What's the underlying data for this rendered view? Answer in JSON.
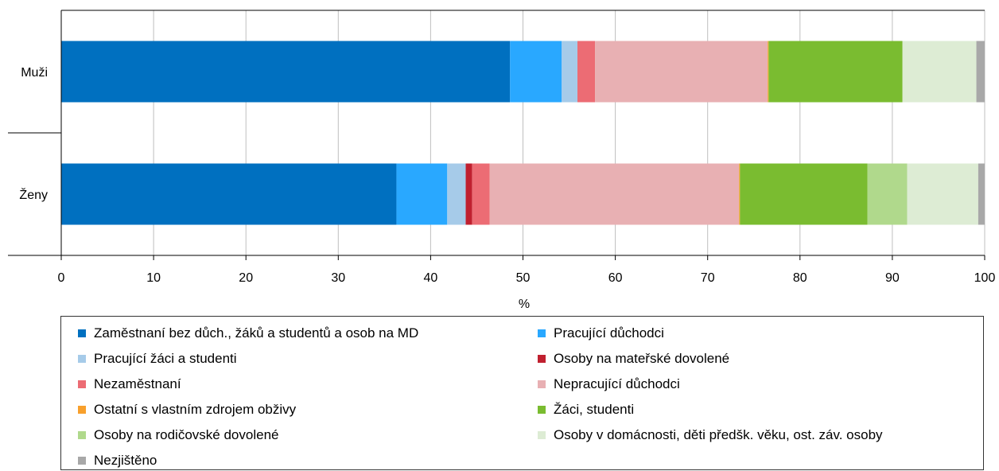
{
  "chart_data": {
    "type": "bar",
    "orientation": "horizontal",
    "stacked": true,
    "categories": [
      "Muži",
      "Ženy"
    ],
    "series": [
      {
        "name": "Zaměstnaní bez důch., žáků a studentů a osob na MD",
        "color": "#0070c0",
        "values": [
          48.6,
          36.3
        ]
      },
      {
        "name": "Pracující důchodci",
        "color": "#29a8ff",
        "values": [
          5.6,
          5.5
        ]
      },
      {
        "name": "Pracující žáci a studenti",
        "color": "#a6cbe9",
        "values": [
          1.7,
          2.0
        ]
      },
      {
        "name": "Osoby na mateřské dovolené",
        "color": "#c0202f",
        "values": [
          0.0,
          0.7
        ]
      },
      {
        "name": "Nezaměstnaní",
        "color": "#ec6c74",
        "values": [
          1.9,
          1.9
        ]
      },
      {
        "name": "Nepracující důchodci",
        "color": "#e8b0b3",
        "values": [
          18.7,
          27.0
        ]
      },
      {
        "name": "Ostatní s vlastním zdrojem obživy",
        "color": "#f8a02c",
        "values": [
          0.1,
          0.1
        ]
      },
      {
        "name": "Žáci, studenti",
        "color": "#7abc30",
        "values": [
          14.5,
          13.8
        ]
      },
      {
        "name": "Osoby na rodičovské dovolené",
        "color": "#b0d98c",
        "values": [
          0.0,
          4.3
        ]
      },
      {
        "name": "Osoby v domácnosti, děti předšk. věku, ost. záv. osoby",
        "color": "#ddecd4",
        "values": [
          8.0,
          7.7
        ]
      },
      {
        "name": "Nezjištěno",
        "color": "#a8a8a8",
        "values": [
          0.9,
          0.7
        ]
      }
    ],
    "xlim": [
      0,
      100
    ],
    "xticks": [
      "0",
      "10",
      "20",
      "30",
      "40",
      "50",
      "60",
      "70",
      "80",
      "90",
      "100"
    ],
    "xlabel": "%",
    "ylabel": "",
    "title": "",
    "grid": "vertical",
    "legend_position": "bottom"
  }
}
